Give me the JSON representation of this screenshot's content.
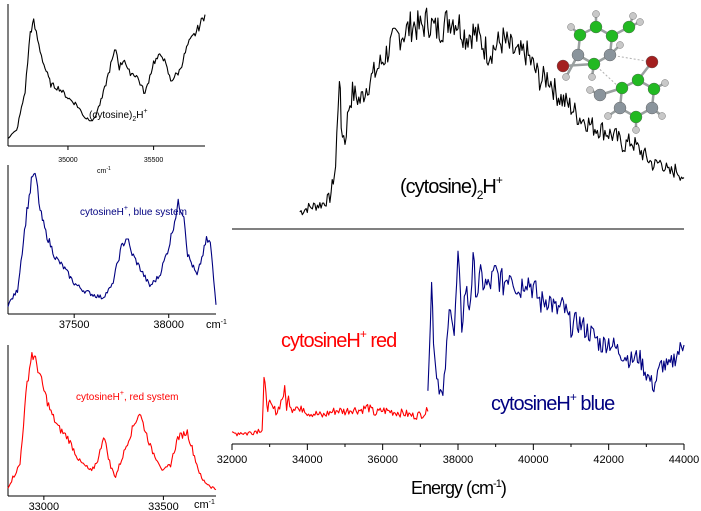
{
  "chart_data": [
    {
      "type": "line",
      "panel": "main",
      "xlabel": "Energy (cm",
      "xlabel_sup": "-1",
      "xlabel_close": ")",
      "xlim": [
        32000,
        44000
      ],
      "xticks": [
        32000,
        34000,
        36000,
        38000,
        40000,
        42000,
        44000
      ],
      "annotations": {
        "dimer": {
          "text": "(cytosine)",
          "sub": "2",
          "post": "H",
          "sup": "+"
        },
        "red": {
          "text": "cytosineH",
          "sup": "+",
          "post": " red"
        },
        "blue": {
          "text": "cytosineH",
          "sup": "+",
          "post": " blue"
        }
      },
      "series": [
        {
          "color": "#000000",
          "x": [
            33800,
            34000,
            34200,
            34400,
            34600,
            34750,
            34850,
            34900,
            35000,
            35100,
            35200,
            35400,
            35600,
            35800,
            36000,
            36200,
            36400,
            36600,
            36800,
            37000,
            37200,
            37400,
            37600,
            37800,
            38000,
            38200,
            38400,
            38600,
            38800,
            39000,
            39200,
            39400,
            39600,
            39800,
            40000,
            40200,
            40400,
            40600,
            40800,
            41000,
            41200,
            41400,
            41600,
            41800,
            42000,
            42200,
            42400,
            42600,
            42800,
            43000,
            43200,
            43400,
            43600,
            43800,
            44000
          ],
          "y": [
            0.03,
            0.05,
            0.06,
            0.07,
            0.1,
            0.25,
            0.72,
            0.45,
            0.38,
            0.55,
            0.62,
            0.58,
            0.66,
            0.72,
            0.78,
            0.85,
            0.9,
            0.92,
            0.96,
            0.94,
            0.98,
            0.93,
            0.95,
            0.99,
            0.97,
            0.9,
            0.92,
            0.88,
            0.82,
            0.85,
            0.88,
            0.84,
            0.8,
            0.82,
            0.75,
            0.68,
            0.7,
            0.62,
            0.58,
            0.55,
            0.5,
            0.48,
            0.45,
            0.44,
            0.42,
            0.4,
            0.36,
            0.38,
            0.34,
            0.3,
            0.26,
            0.28,
            0.22,
            0.24,
            0.2
          ]
        },
        {
          "color": "#ff0000",
          "x": [
            32000,
            32200,
            32400,
            32600,
            32800,
            32850,
            32900,
            32950,
            33000,
            33100,
            33200,
            33300,
            33400,
            33450,
            33500,
            33600,
            33700,
            33800,
            33900,
            34000,
            34200,
            34400,
            34600,
            34800,
            35000,
            35200,
            35400,
            35600,
            35800,
            36000,
            36200,
            36400,
            36600,
            36800,
            37000,
            37200
          ],
          "y": [
            0.05,
            0.07,
            0.06,
            0.08,
            0.1,
            0.55,
            0.4,
            0.3,
            0.32,
            0.28,
            0.26,
            0.35,
            0.45,
            0.3,
            0.38,
            0.28,
            0.32,
            0.26,
            0.3,
            0.25,
            0.24,
            0.22,
            0.25,
            0.27,
            0.26,
            0.28,
            0.27,
            0.3,
            0.24,
            0.27,
            0.26,
            0.25,
            0.24,
            0.22,
            0.23,
            0.26
          ]
        },
        {
          "color": "#000080",
          "x": [
            37200,
            37300,
            37350,
            37400,
            37500,
            37600,
            37700,
            37800,
            37900,
            38000,
            38100,
            38200,
            38300,
            38400,
            38500,
            38600,
            38800,
            39000,
            39200,
            39400,
            39600,
            39800,
            40000,
            40200,
            40400,
            40600,
            40800,
            41000,
            41200,
            41400,
            41600,
            41800,
            42000,
            42200,
            42400,
            42600,
            42800,
            43000,
            43200,
            43400,
            43600,
            43800,
            44000
          ],
          "y": [
            0.3,
            0.82,
            0.55,
            0.4,
            0.28,
            0.22,
            0.48,
            0.75,
            0.55,
            0.95,
            0.6,
            0.8,
            0.7,
            0.92,
            0.78,
            0.85,
            0.8,
            0.88,
            0.82,
            0.9,
            0.78,
            0.86,
            0.8,
            0.72,
            0.75,
            0.68,
            0.7,
            0.6,
            0.62,
            0.58,
            0.55,
            0.5,
            0.52,
            0.48,
            0.45,
            0.42,
            0.44,
            0.35,
            0.28,
            0.4,
            0.38,
            0.45,
            0.5
          ]
        }
      ]
    },
    {
      "type": "line",
      "panel": "inset-dimer",
      "title": "(cytosine)",
      "title_sub": "2",
      "title_post": "H",
      "title_sup": "+",
      "xlabel": "cm",
      "xlabel_sup": "-1",
      "xlim": [
        34650,
        35800
      ],
      "xticks": [
        35000,
        35500
      ],
      "series": [
        {
          "color": "#000000",
          "x": [
            34650,
            34700,
            34750,
            34780,
            34800,
            34830,
            34860,
            34900,
            34950,
            35000,
            35050,
            35100,
            35150,
            35200,
            35250,
            35280,
            35300,
            35330,
            35350,
            35400,
            35450,
            35500,
            35550,
            35600,
            35650,
            35700,
            35750,
            35800
          ],
          "y": [
            0.05,
            0.1,
            0.4,
            0.85,
            0.92,
            0.75,
            0.6,
            0.45,
            0.42,
            0.35,
            0.3,
            0.2,
            0.18,
            0.35,
            0.6,
            0.72,
            0.58,
            0.65,
            0.55,
            0.52,
            0.38,
            0.62,
            0.68,
            0.48,
            0.55,
            0.75,
            0.85,
            0.98
          ]
        }
      ]
    },
    {
      "type": "line",
      "panel": "inset-blue",
      "title": "cytosineH",
      "title_sup": "+",
      "title_post": ", blue system",
      "xlabel": "cm",
      "xlabel_sup": "-1",
      "xlim": [
        37150,
        38250
      ],
      "xticks": [
        37500,
        38000
      ],
      "series": [
        {
          "color": "#000080",
          "x": [
            37150,
            37200,
            37250,
            37280,
            37300,
            37320,
            37350,
            37400,
            37450,
            37500,
            37550,
            37600,
            37650,
            37700,
            37750,
            37780,
            37800,
            37850,
            37900,
            37950,
            38000,
            38050,
            38080,
            38100,
            38150,
            38200,
            38220,
            38250
          ],
          "y": [
            0.05,
            0.15,
            0.7,
            0.95,
            0.92,
            0.7,
            0.55,
            0.38,
            0.3,
            0.2,
            0.15,
            0.12,
            0.1,
            0.18,
            0.45,
            0.52,
            0.42,
            0.3,
            0.18,
            0.25,
            0.45,
            0.75,
            0.68,
            0.4,
            0.25,
            0.5,
            0.48,
            0.05
          ]
        }
      ]
    },
    {
      "type": "line",
      "panel": "inset-red",
      "title": "cytosineH",
      "title_sup": "+",
      "title_post": ", red system",
      "xlabel": "cm",
      "xlabel_sup": "-1",
      "xlim": [
        32850,
        33720
      ],
      "xticks": [
        33000,
        33500
      ],
      "series": [
        {
          "color": "#ff0000",
          "x": [
            32850,
            32900,
            32930,
            32950,
            32970,
            33000,
            33030,
            33060,
            33100,
            33150,
            33200,
            33230,
            33250,
            33280,
            33300,
            33350,
            33380,
            33400,
            33430,
            33450,
            33480,
            33500,
            33530,
            33560,
            33600,
            33640,
            33660,
            33700,
            33720
          ],
          "y": [
            0.05,
            0.2,
            0.75,
            0.95,
            0.88,
            0.7,
            0.55,
            0.45,
            0.38,
            0.22,
            0.15,
            0.25,
            0.4,
            0.18,
            0.12,
            0.35,
            0.48,
            0.55,
            0.4,
            0.3,
            0.22,
            0.15,
            0.2,
            0.38,
            0.42,
            0.2,
            0.1,
            0.05,
            0.03
          ]
        }
      ]
    }
  ],
  "molecule": {
    "colors": {
      "carbon": "#22b922",
      "nitrogen": "#8a949c",
      "oxygen": "#a31f1f",
      "hydrogen": "#c8c8c8"
    }
  }
}
